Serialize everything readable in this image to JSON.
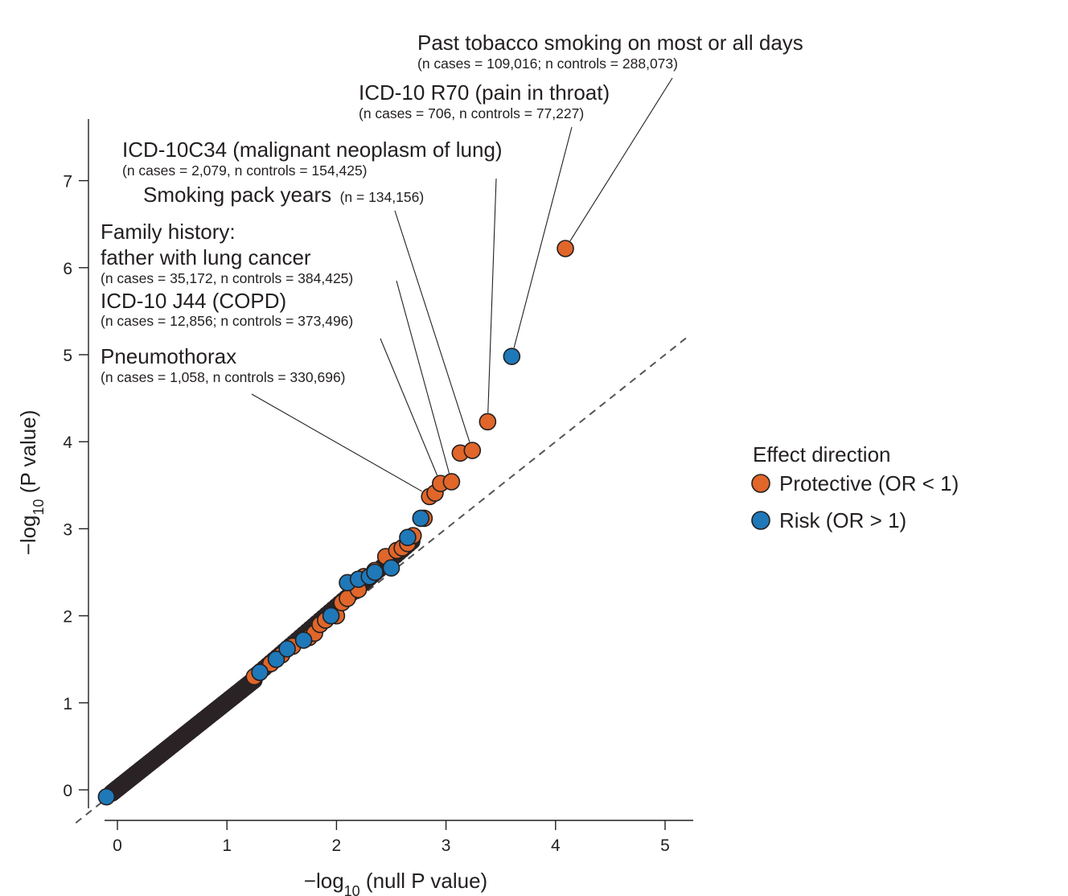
{
  "chart_data": {
    "type": "scatter",
    "title": "",
    "xlabel": "−log10 (null P value)",
    "ylabel": "−log10 (P value)",
    "xlim": [
      -0.3,
      5.25
    ],
    "ylim": [
      -0.35,
      7.7
    ],
    "xticks": [
      0,
      1,
      2,
      3,
      4,
      5
    ],
    "yticks": [
      0,
      1,
      2,
      3,
      4,
      5,
      6,
      7
    ],
    "grid": false,
    "reference_line": "y = x (dashed)",
    "legend": {
      "title": "Effect direction",
      "placement": "right",
      "entries": [
        {
          "label": "Protective (OR < 1)",
          "color": "#e0662a"
        },
        {
          "label": "Risk (OR > 1)",
          "color": "#1f78b8"
        }
      ]
    },
    "colors": {
      "protective": "#e0662a",
      "risk": "#1f78b8",
      "dense": "#2a2326",
      "outline": "#231f20"
    },
    "series": [
      {
        "color_key": "protective",
        "x": [
          1.25,
          1.4,
          1.5,
          1.6,
          1.75,
          1.8,
          1.85,
          1.9,
          2.0,
          2.05,
          2.1,
          2.2,
          2.25,
          2.35,
          2.45,
          2.55,
          2.6,
          2.65,
          2.7,
          2.8,
          2.85,
          2.9,
          2.95,
          3.05,
          3.13,
          3.24,
          3.38,
          4.09
        ],
        "y": [
          1.3,
          1.45,
          1.55,
          1.65,
          1.75,
          1.8,
          1.9,
          1.95,
          2.0,
          2.15,
          2.2,
          2.3,
          2.45,
          2.52,
          2.68,
          2.75,
          2.78,
          2.83,
          2.92,
          3.12,
          3.37,
          3.41,
          3.52,
          3.54,
          3.87,
          3.9,
          4.23,
          6.22
        ]
      },
      {
        "color_key": "risk",
        "x": [
          -0.1,
          1.3,
          1.45,
          1.55,
          1.7,
          1.95,
          2.1,
          2.2,
          2.3,
          2.35,
          2.5,
          2.65,
          2.77,
          3.6
        ],
        "y": [
          -0.08,
          1.35,
          1.5,
          1.62,
          1.72,
          2.0,
          2.38,
          2.42,
          2.45,
          2.5,
          2.55,
          2.9,
          3.12,
          4.98
        ]
      }
    ],
    "annotations": [
      {
        "title": "Past tobacco smoking on most or all days",
        "detail": "(n cases = 109,016; n controls = 288,073)",
        "x": 4.09,
        "y": 6.22
      },
      {
        "title": "ICD-10 R70 (pain in throat)",
        "detail": "(n cases = 706, n controls = 77,227)",
        "x": 3.6,
        "y": 4.98
      },
      {
        "title": "ICD-10C34 (malignant neoplasm of lung)",
        "detail": "(n cases = 2,079, n controls = 154,425)",
        "x": 3.38,
        "y": 4.23
      },
      {
        "title": "Smoking pack years",
        "detail": "(n = 134,156)",
        "x": 3.24,
        "y": 3.9
      },
      {
        "title": "Family history:",
        "title2": "father with lung cancer",
        "detail": "(n cases = 35,172, n controls = 384,425)",
        "x": 3.05,
        "y": 3.54
      },
      {
        "title": "ICD-10 J44 (COPD)",
        "detail": "(n cases = 12,856; n controls = 373,496)",
        "x": 2.95,
        "y": 3.52
      },
      {
        "title": "Pneumothorax",
        "detail": "(n cases = 1,058, n controls = 330,696)",
        "x": 2.85,
        "y": 3.38
      }
    ]
  }
}
